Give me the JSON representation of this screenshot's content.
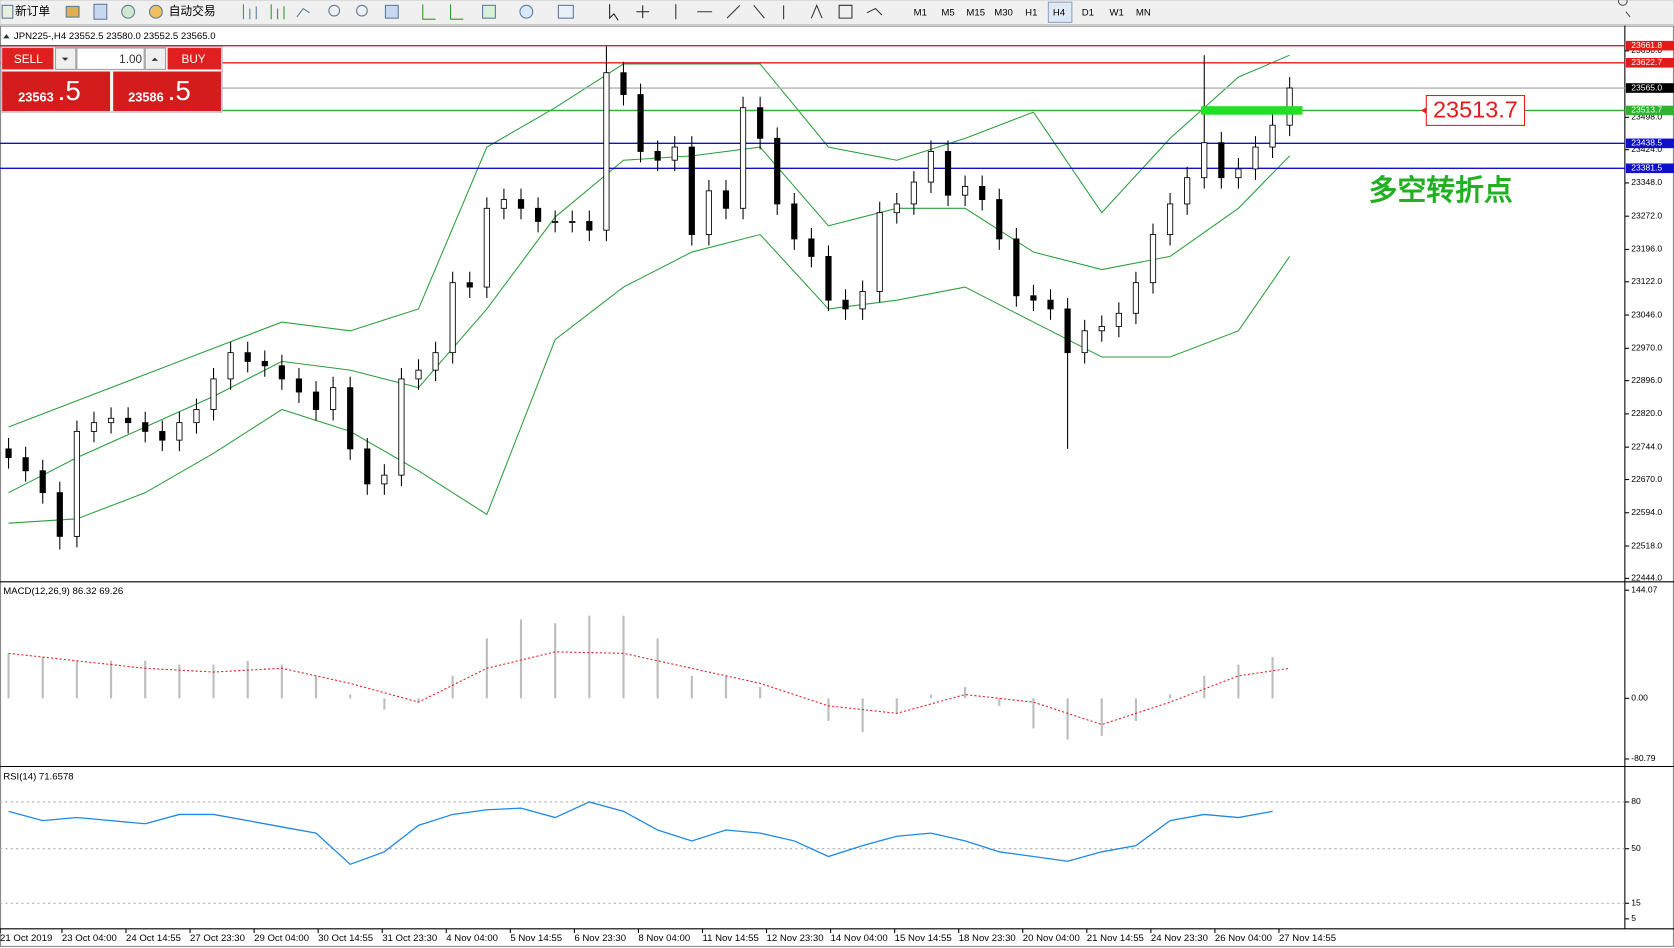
{
  "toolbar": {
    "buttons": [
      "新订单",
      "自动交易"
    ],
    "timeframes": [
      "M1",
      "M5",
      "M15",
      "M30",
      "H1",
      "H4",
      "D1",
      "W1",
      "MN"
    ]
  },
  "order_panel": {
    "sell": "SELL",
    "buy": "BUY",
    "lot": "1.00",
    "sell_price": "23563",
    "sell_pips": ".5",
    "buy_price": "23586",
    "buy_pips": ".5"
  },
  "price_chart": {
    "label": "JPN225-,H4 23552.5 23580.0 23552.5 23565.0",
    "ylim": [
      22441,
      23693
    ],
    "xlim": [
      -0.5,
      94.625
    ],
    "yticks": [
      {
        "value": 23650,
        "label": "23650.0"
      },
      {
        "value": 23498,
        "label": "23498.0"
      },
      {
        "value": 23424,
        "label": "23424.0"
      },
      {
        "value": 23348,
        "label": "23348.0"
      },
      {
        "value": 23272,
        "label": "23272.0"
      },
      {
        "value": 23196,
        "label": "23196.0"
      },
      {
        "value": 23122,
        "label": "23122.0"
      },
      {
        "value": 23046,
        "label": "23046.0"
      },
      {
        "value": 22970,
        "label": "22970.0"
      },
      {
        "value": 22896,
        "label": "22896.0"
      },
      {
        "value": 22820,
        "label": "22820.0"
      },
      {
        "value": 22744,
        "label": "22744.0"
      },
      {
        "value": 22670,
        "label": "22670.0"
      },
      {
        "value": 22594,
        "label": "22594.0"
      },
      {
        "value": 22518,
        "label": "22518.0"
      },
      {
        "value": 22444,
        "label": "22444.0"
      }
    ],
    "levels": [
      {
        "value": 23661.8,
        "color": "#e41b1b"
      },
      {
        "value": 23622.7,
        "color": "#e41b1b"
      },
      {
        "value": 23565,
        "label": "23565.0",
        "color": "#000000"
      },
      {
        "value": 23513.7,
        "color": "#2db52d"
      },
      {
        "value": 23438.5,
        "color": "#1010c8"
      },
      {
        "value": 23381.5,
        "color": "#1010c8"
      }
    ],
    "xticks": [
      {
        "value": -0.5,
        "label": "21 Oct 2019"
      },
      {
        "value": 3.125,
        "label": "23 Oct 04:00"
      },
      {
        "value": 6.875,
        "label": "24 Oct 14:55"
      },
      {
        "value": 10.625,
        "label": "27 Oct 23:30"
      },
      {
        "value": 14.375,
        "label": "29 Oct 04:00"
      },
      {
        "value": 18.125,
        "label": "30 Oct 14:55"
      },
      {
        "value": 21.875,
        "label": "31 Oct 23:30"
      },
      {
        "value": 25.625,
        "label": "4 Nov 04:00"
      },
      {
        "value": 29.375,
        "label": "5 Nov 14:55"
      },
      {
        "value": 33.125,
        "label": "6 Nov 23:30"
      },
      {
        "value": 36.875,
        "label": "8 Nov 04:00"
      },
      {
        "value": 40.625,
        "label": "11 Nov 14:55"
      },
      {
        "value": 44.375,
        "label": "12 Nov 23:30"
      },
      {
        "value": 48.125,
        "label": "14 Nov 04:00"
      },
      {
        "value": 51.875,
        "label": "15 Nov 14:55"
      },
      {
        "value": 55.625,
        "label": "18 Nov 23:30"
      },
      {
        "value": 59.375,
        "label": "20 Nov 04:00"
      },
      {
        "value": 63.125,
        "label": "21 Nov 14:55"
      },
      {
        "value": 66.875,
        "label": "24 Nov 23:30"
      },
      {
        "value": 70.625,
        "label": "26 Nov 04:00"
      },
      {
        "value": 74.375,
        "label": "27 Nov 14:55"
      }
    ],
    "candles": [
      [
        22740,
        22765,
        22695,
        22720
      ],
      [
        22720,
        22745,
        22665,
        22690
      ],
      [
        22690,
        22715,
        22615,
        22640
      ],
      [
        22640,
        22665,
        22510,
        22540
      ],
      [
        22540,
        22805,
        22515,
        22780
      ],
      [
        22780,
        22825,
        22755,
        22800
      ],
      [
        22800,
        22835,
        22775,
        22810
      ],
      [
        22810,
        22835,
        22775,
        22800
      ],
      [
        22800,
        22825,
        22755,
        22780
      ],
      [
        22780,
        22805,
        22735,
        22760
      ],
      [
        22760,
        22825,
        22735,
        22800
      ],
      [
        22800,
        22855,
        22775,
        22830
      ],
      [
        22830,
        22925,
        22805,
        22900
      ],
      [
        22900,
        22985,
        22875,
        22960
      ],
      [
        22960,
        22985,
        22915,
        22940
      ],
      [
        22940,
        22965,
        22905,
        22930
      ],
      [
        22930,
        22955,
        22875,
        22900
      ],
      [
        22900,
        22925,
        22845,
        22870
      ],
      [
        22870,
        22895,
        22805,
        22830
      ],
      [
        22830,
        22905,
        22805,
        22880
      ],
      [
        22880,
        22905,
        22715,
        22740
      ],
      [
        22740,
        22765,
        22635,
        22660
      ],
      [
        22660,
        22705,
        22635,
        22680
      ],
      [
        22680,
        22925,
        22655,
        22900
      ],
      [
        22900,
        22945,
        22875,
        22920
      ],
      [
        22920,
        22985,
        22895,
        22960
      ],
      [
        22960,
        23145,
        22935,
        23120
      ],
      [
        23120,
        23145,
        23085,
        23110
      ],
      [
        23110,
        23315,
        23085,
        23290
      ],
      [
        23290,
        23335,
        23265,
        23310
      ],
      [
        23310,
        23335,
        23265,
        23290
      ],
      [
        23290,
        23315,
        23235,
        23260
      ],
      [
        23260,
        23285,
        23235,
        23260
      ],
      [
        23260,
        23285,
        23235,
        23260
      ],
      [
        23260,
        23285,
        23215,
        23240
      ],
      [
        23240,
        23660,
        23215,
        23600
      ],
      [
        23600,
        23625,
        23525,
        23550
      ],
      [
        23550,
        23575,
        23395,
        23420
      ],
      [
        23420,
        23445,
        23375,
        23400
      ],
      [
        23400,
        23455,
        23375,
        23430
      ],
      [
        23430,
        23455,
        23205,
        23230
      ],
      [
        23230,
        23355,
        23205,
        23330
      ],
      [
        23330,
        23355,
        23265,
        23290
      ],
      [
        23290,
        23545,
        23265,
        23520
      ],
      [
        23520,
        23545,
        23425,
        23450
      ],
      [
        23450,
        23475,
        23275,
        23300
      ],
      [
        23300,
        23325,
        23195,
        23220
      ],
      [
        23220,
        23245,
        23155,
        23180
      ],
      [
        23180,
        23205,
        23055,
        23080
      ],
      [
        23080,
        23105,
        23035,
        23060
      ],
      [
        23060,
        23125,
        23035,
        23100
      ],
      [
        23100,
        23305,
        23075,
        23280
      ],
      [
        23280,
        23325,
        23255,
        23300
      ],
      [
        23300,
        23375,
        23275,
        23350
      ],
      [
        23350,
        23445,
        23325,
        23420
      ],
      [
        23420,
        23445,
        23295,
        23320
      ],
      [
        23320,
        23365,
        23295,
        23340
      ],
      [
        23340,
        23365,
        23285,
        23310
      ],
      [
        23310,
        23335,
        23195,
        23220
      ],
      [
        23220,
        23245,
        23065,
        23090
      ],
      [
        23090,
        23115,
        23055,
        23080
      ],
      [
        23080,
        23105,
        23035,
        23060
      ],
      [
        23060,
        23085,
        22740,
        22960
      ],
      [
        22960,
        23035,
        22935,
        23010
      ],
      [
        23010,
        23045,
        22985,
        23020
      ],
      [
        23020,
        23075,
        22995,
        23050
      ],
      [
        23050,
        23145,
        23025,
        23120
      ],
      [
        23120,
        23255,
        23095,
        23230
      ],
      [
        23230,
        23325,
        23205,
        23300
      ],
      [
        23300,
        23385,
        23275,
        23360
      ],
      [
        23360,
        23640,
        23335,
        23440
      ],
      [
        23440,
        23465,
        23335,
        23360
      ],
      [
        23360,
        23405,
        23335,
        23380
      ],
      [
        23380,
        23455,
        23355,
        23430
      ],
      [
        23430,
        23505,
        23405,
        23480
      ],
      [
        23480,
        23590,
        23455,
        23565
      ]
    ],
    "bands": {
      "color": "#2e9e3e",
      "x": [
        0,
        4,
        8,
        12,
        16,
        20,
        24,
        28,
        32,
        36,
        40,
        44,
        48,
        52,
        56,
        60,
        64,
        68,
        72,
        75
      ],
      "upper": [
        22790,
        22850,
        22910,
        22970,
        23030,
        23010,
        23060,
        23430,
        23520,
        23620,
        23620,
        23620,
        23430,
        23400,
        23450,
        23510,
        23280,
        23450,
        23590,
        23640
      ],
      "middle": [
        22640,
        22720,
        22790,
        22860,
        22940,
        22920,
        22880,
        23060,
        23270,
        23400,
        23410,
        23430,
        23250,
        23290,
        23290,
        23190,
        23150,
        23180,
        23290,
        23410
      ],
      "lower": [
        22570,
        22580,
        22640,
        22730,
        22830,
        22780,
        22690,
        22590,
        22990,
        23110,
        23190,
        23230,
        23060,
        23080,
        23110,
        23030,
        22950,
        22950,
        23010,
        23180
      ]
    }
  },
  "annotation": {
    "price_label": 23513.7,
    "text": "多空转折点"
  },
  "macd": {
    "label": "MACD(12,26,9) 86.32 69.26",
    "ylim": [
      -88,
      151
    ],
    "yticks": [
      144.07,
      {
        "value": 0,
        "label": "0.00"
      },
      -80.79
    ],
    "x": [
      0,
      2,
      4,
      6,
      8,
      10,
      12,
      14,
      16,
      18,
      20,
      22,
      24,
      26,
      28,
      30,
      32,
      34,
      36,
      38,
      40,
      42,
      44,
      46,
      48,
      50,
      52,
      54,
      56,
      58,
      60,
      62,
      64,
      66,
      68,
      70,
      72,
      74
    ],
    "histogram": [
      60,
      55,
      50,
      50,
      50,
      45,
      45,
      50,
      45,
      30,
      5,
      -15,
      -5,
      30,
      80,
      105,
      100,
      110,
      110,
      80,
      30,
      30,
      15,
      0,
      -30,
      -45,
      -20,
      5,
      15,
      -10,
      -40,
      -55,
      -50,
      -30,
      5,
      30,
      45,
      55
    ],
    "signal": [
      60,
      50,
      40,
      35,
      40,
      20,
      -5,
      40,
      62,
      60,
      40,
      20,
      -10,
      -20,
      5,
      -5,
      -35,
      -5,
      30,
      40
    ]
  },
  "rsi": {
    "label": "RSI(14) 71.6578",
    "ylim": [
      0,
      100
    ],
    "yticks": [
      80,
      50,
      15,
      5
    ],
    "levels": [
      80,
      50,
      15
    ],
    "values": [
      74,
      68,
      70,
      68,
      66,
      72,
      72,
      68,
      64,
      60,
      40,
      48,
      65,
      72,
      75,
      76,
      70,
      80,
      74,
      62,
      55,
      62,
      60,
      55,
      45,
      52,
      58,
      60,
      55,
      48,
      45,
      42,
      48,
      52,
      68,
      72,
      70,
      74
    ]
  }
}
